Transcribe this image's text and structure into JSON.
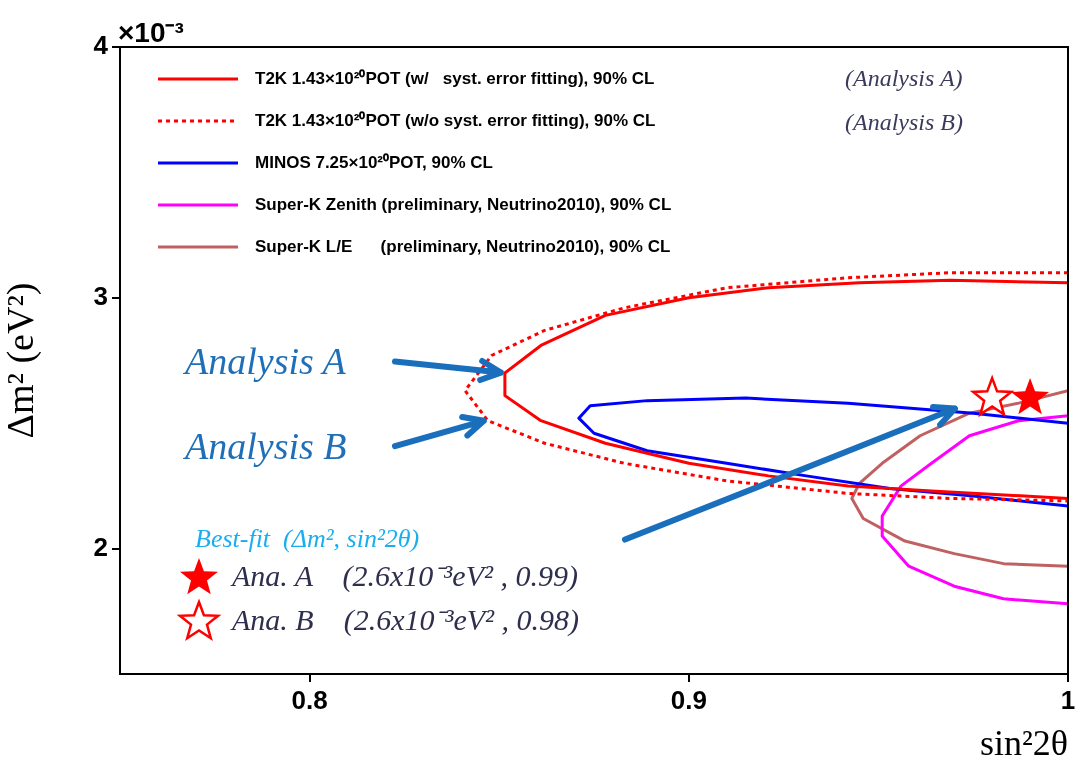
{
  "chart_data": {
    "type": "line",
    "xlabel": "sin²2θ",
    "ylabel": "Δm² (eV²)",
    "xlim": [
      0.75,
      1.0
    ],
    "xticks": [
      0.8,
      0.9,
      1
    ],
    "ylim": [
      1.5,
      4
    ],
    "yticks": [
      2,
      3,
      4
    ],
    "legend": "top",
    "marker": "none",
    "series": [
      {
        "name": "T2K 1.43×10²⁰POT (w/   syst. error fitting), 90% CL",
        "color": "#ff0000",
        "line_style": "solid",
        "x": [
          1.0,
          0.969,
          0.945,
          0.921,
          0.9,
          0.878,
          0.861,
          0.8515,
          0.8515,
          0.861,
          0.878,
          0.9,
          0.921,
          0.942,
          0.964,
          1.0
        ],
        "values": [
          3.06,
          3.07,
          3.06,
          3.04,
          3.0,
          2.93,
          2.81,
          2.7,
          2.61,
          2.51,
          2.42,
          2.34,
          2.29,
          2.25,
          2.23,
          2.2
        ]
      },
      {
        "name": "T2K 1.43×10²⁰POT (w/o syst. error fitting), 90% CL",
        "color": "#ff0000",
        "line_style": "dotted",
        "x": [
          1.0,
          0.969,
          0.942,
          0.91,
          0.883,
          0.862,
          0.848,
          0.841,
          0.847,
          0.862,
          0.883,
          0.91,
          0.942,
          0.969,
          1.0
        ],
        "values": [
          3.1,
          3.1,
          3.08,
          3.04,
          2.96,
          2.87,
          2.77,
          2.63,
          2.51,
          2.42,
          2.34,
          2.27,
          2.22,
          2.2,
          2.19
        ]
      },
      {
        "name": "MINOS 7.25×10²⁰POT, 90% CL",
        "color": "#0000ff",
        "line_style": "solid",
        "x": [
          1.0,
          0.975,
          0.942,
          0.915,
          0.889,
          0.874,
          0.871,
          0.875,
          0.889,
          0.91,
          0.931,
          0.953,
          0.975,
          1.0
        ],
        "values": [
          2.5,
          2.54,
          2.58,
          2.6,
          2.59,
          2.57,
          2.52,
          2.46,
          2.39,
          2.34,
          2.29,
          2.24,
          2.21,
          2.17
        ]
      },
      {
        "name": "Super-K Zenith (preliminary, Neutrino2010), 90% CL",
        "color": "#ff00ff",
        "line_style": "solid",
        "x": [
          1.0,
          0.987,
          0.974,
          0.964,
          0.956,
          0.951,
          0.951,
          0.958,
          0.97,
          0.983,
          1.0
        ],
        "values": [
          2.53,
          2.51,
          2.45,
          2.34,
          2.25,
          2.13,
          2.05,
          1.93,
          1.85,
          1.8,
          1.78
        ]
      },
      {
        "name": "Super-K L/E      (preliminary, Neutrino2010), 90% CL",
        "color": "#c06060",
        "line_style": "solid",
        "x": [
          1.0,
          0.987,
          0.974,
          0.961,
          0.951,
          0.945,
          0.943,
          0.946,
          0.957,
          0.97,
          0.983,
          1.0
        ],
        "values": [
          2.63,
          2.58,
          2.54,
          2.45,
          2.34,
          2.26,
          2.2,
          2.12,
          2.03,
          1.98,
          1.94,
          1.93
        ]
      },
      {
        "name": "Ana. A    (2.6x10⁻³eV² , 0.99)",
        "type": "scatter",
        "marker": "star",
        "color": "#ff0000",
        "x": [
          0.99
        ],
        "values": [
          2.6
        ]
      },
      {
        "name": "Ana. B    (2.6x10⁻³eV² , 0.98)",
        "type": "scatter",
        "marker": "star",
        "color": "#ff0000",
        "x": [
          0.98
        ],
        "values": [
          2.6
        ]
      }
    ],
    "annotations": [
      "×10⁻³",
      "(Analysis A)",
      "(Analysis B)",
      {
        "text": "Analysis A",
        "x": 0.8515,
        "y": 2.7
      },
      {
        "text": "Analysis B",
        "x": 0.847,
        "y": 2.51
      },
      "Best-fit  (Δm², sin²2θ)"
    ]
  }
}
